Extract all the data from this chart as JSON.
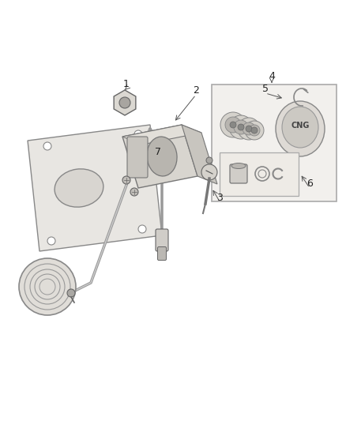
{
  "background_color": "#ffffff",
  "label_color": "#222222",
  "figsize": [
    4.38,
    5.33
  ],
  "dpi": 100,
  "plate_color": "#e8e6e2",
  "plate_edge": "#888888",
  "bracket_color": "#d5d2cd",
  "bracket_edge": "#777777",
  "line_color": "#888888",
  "box_color": "#f2f0ed",
  "box_edge": "#aaaaaa"
}
